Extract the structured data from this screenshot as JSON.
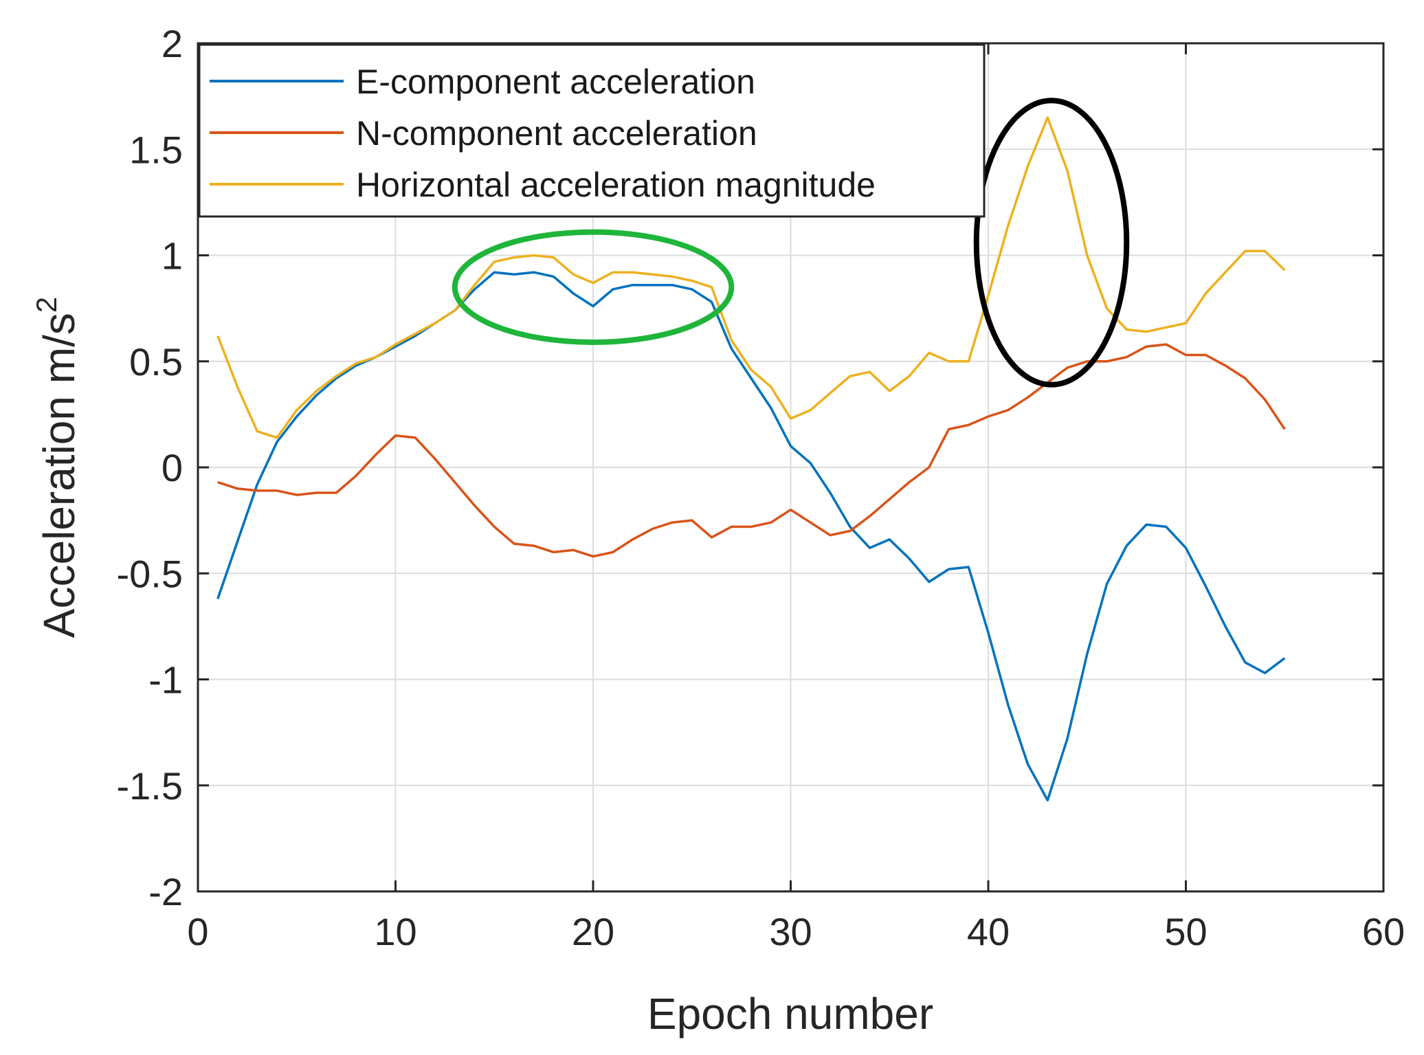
{
  "chart_data": {
    "type": "line",
    "title": "",
    "xlabel": "Epoch number",
    "ylabel": "Acceleration m/s",
    "ylabel_superscript": "2",
    "xlim": [
      0,
      60
    ],
    "ylim": [
      -2,
      2
    ],
    "xticks": [
      0,
      10,
      20,
      30,
      40,
      50,
      60
    ],
    "yticks": [
      -2,
      -1.5,
      -1,
      -0.5,
      0,
      0.5,
      1,
      1.5,
      2
    ],
    "xtick_labels": [
      "0",
      "10",
      "20",
      "30",
      "40",
      "50",
      "60"
    ],
    "ytick_labels": [
      "-2",
      "-1.5",
      "-1",
      "-0.5",
      "0",
      "0.5",
      "1",
      "1.5",
      "2"
    ],
    "grid": true,
    "legend_position": "top-left",
    "x": [
      1,
      2,
      3,
      4,
      5,
      6,
      7,
      8,
      9,
      10,
      11,
      12,
      13,
      14,
      15,
      16,
      17,
      18,
      19,
      20,
      21,
      22,
      23,
      24,
      25,
      26,
      27,
      28,
      29,
      30,
      31,
      32,
      33,
      34,
      35,
      36,
      37,
      38,
      39,
      40,
      41,
      42,
      43,
      44,
      45,
      46,
      47,
      48,
      49,
      50,
      51,
      52,
      53,
      54,
      55
    ],
    "series": [
      {
        "name": "E-component acceleration",
        "color": "#0072BD",
        "values": [
          -0.62,
          -0.35,
          -0.08,
          0.12,
          0.24,
          0.34,
          0.42,
          0.48,
          0.52,
          0.57,
          0.62,
          0.68,
          0.74,
          0.84,
          0.92,
          0.91,
          0.92,
          0.9,
          0.82,
          0.76,
          0.84,
          0.86,
          0.86,
          0.86,
          0.84,
          0.78,
          0.56,
          0.42,
          0.28,
          0.1,
          0.02,
          -0.12,
          -0.28,
          -0.38,
          -0.34,
          -0.43,
          -0.54,
          -0.48,
          -0.47,
          -0.78,
          -1.12,
          -1.4,
          -1.57,
          -1.28,
          -0.88,
          -0.55,
          -0.37,
          -0.27,
          -0.28,
          -0.38,
          -0.56,
          -0.75,
          -0.92,
          -0.97,
          -0.9
        ]
      },
      {
        "name": "N-component acceleration",
        "color": "#D95319",
        "values": [
          -0.07,
          -0.1,
          -0.11,
          -0.11,
          -0.13,
          -0.12,
          -0.12,
          -0.04,
          0.06,
          0.15,
          0.14,
          0.04,
          -0.07,
          -0.18,
          -0.28,
          -0.36,
          -0.37,
          -0.4,
          -0.39,
          -0.42,
          -0.4,
          -0.34,
          -0.29,
          -0.26,
          -0.25,
          -0.33,
          -0.28,
          -0.28,
          -0.26,
          -0.2,
          -0.26,
          -0.32,
          -0.3,
          -0.23,
          -0.15,
          -0.07,
          0.0,
          0.18,
          0.2,
          0.24,
          0.27,
          0.33,
          0.4,
          0.47,
          0.5,
          0.5,
          0.52,
          0.57,
          0.58,
          0.53,
          0.53,
          0.48,
          0.42,
          0.32,
          0.18
        ]
      },
      {
        "name": "Horizontal acceleration magnitude",
        "color": "#EDB120",
        "values": [
          0.62,
          0.38,
          0.17,
          0.14,
          0.27,
          0.36,
          0.43,
          0.49,
          0.52,
          0.58,
          0.63,
          0.68,
          0.74,
          0.86,
          0.97,
          0.99,
          1.0,
          0.99,
          0.91,
          0.87,
          0.92,
          0.92,
          0.91,
          0.9,
          0.88,
          0.85,
          0.6,
          0.46,
          0.38,
          0.23,
          0.27,
          0.35,
          0.43,
          0.45,
          0.36,
          0.43,
          0.54,
          0.5,
          0.5,
          0.81,
          1.14,
          1.42,
          1.65,
          1.4,
          1.0,
          0.75,
          0.65,
          0.64,
          0.66,
          0.68,
          0.82,
          0.92,
          1.02,
          1.02,
          0.93
        ]
      }
    ],
    "annotations": [
      {
        "shape": "ellipse",
        "color": "#1eb53a",
        "cx": 20,
        "cy": 0.85,
        "rx": 7,
        "ry": 0.26
      },
      {
        "shape": "ellipse",
        "color": "#000000",
        "cx": 43.2,
        "cy": 1.06,
        "rx": 3.8,
        "ry": 0.67
      }
    ]
  }
}
